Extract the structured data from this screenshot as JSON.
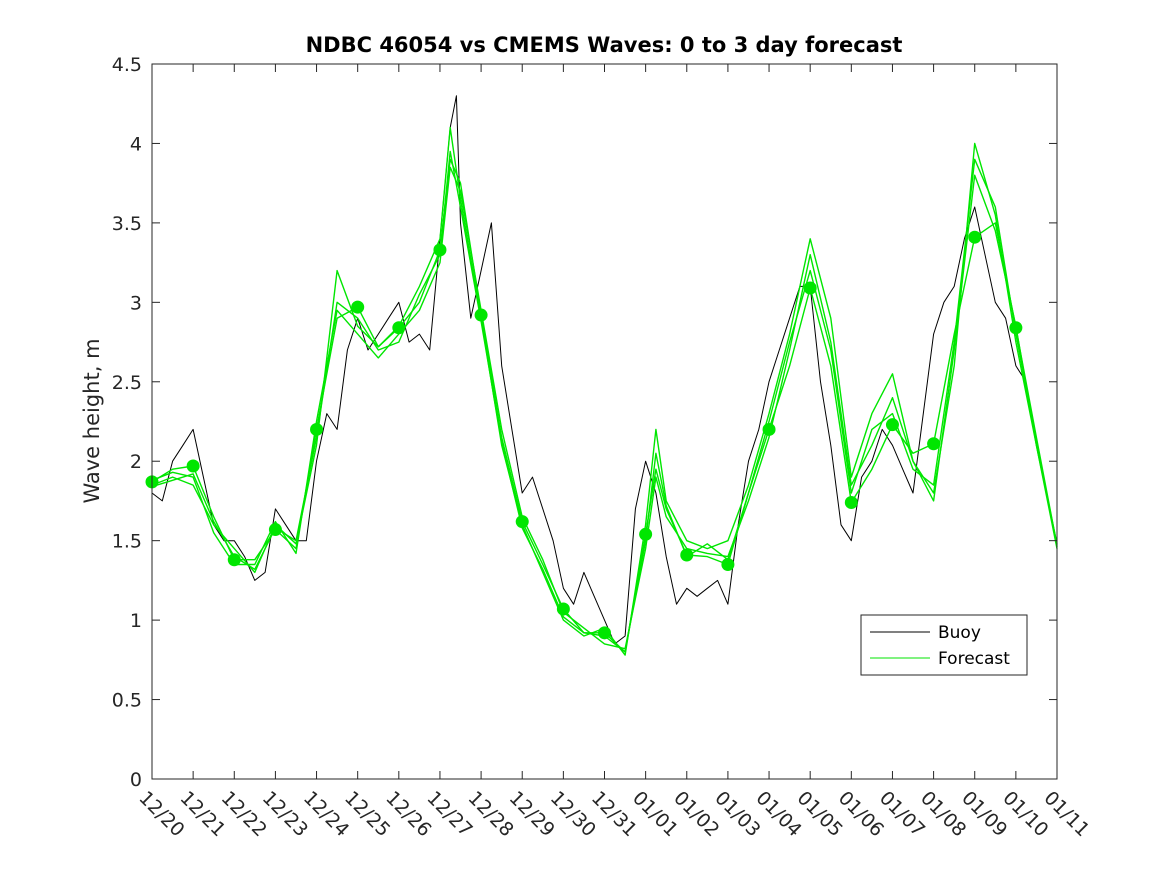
{
  "colors": {
    "buoy": "#000000",
    "forecast": "#00e600",
    "axes": "#262626",
    "background": "#ffffff"
  },
  "chart_data": {
    "type": "line",
    "title": "NDBC 46054 vs CMEMS Waves: 0 to 3 day forecast",
    "xlabel": "",
    "ylabel": "Wave height, m",
    "xlim": [
      0,
      22
    ],
    "ylim": [
      0,
      4.5
    ],
    "x_unit": "days, tick labels are dates",
    "x_tick_labels": [
      "12/20",
      "12/21",
      "12/22",
      "12/23",
      "12/24",
      "12/25",
      "12/26",
      "12/27",
      "12/28",
      "12/29",
      "12/30",
      "12/31",
      "01/01",
      "01/02",
      "01/03",
      "01/04",
      "01/05",
      "01/06",
      "01/07",
      "01/08",
      "01/09",
      "01/10",
      "01/11"
    ],
    "y_ticks": [
      "0",
      "0.5",
      "1",
      "1.5",
      "2",
      "2.5",
      "3",
      "3.5",
      "4",
      "4.5"
    ],
    "grid": false,
    "legend": {
      "placement": "bottom-right",
      "entries": [
        "Buoy",
        "Forecast"
      ]
    },
    "series": [
      {
        "name": "Buoy",
        "style": "line",
        "x": [
          0,
          0.25,
          0.5,
          0.75,
          1,
          1.25,
          1.5,
          1.75,
          2,
          2.25,
          2.5,
          2.75,
          3,
          3.25,
          3.5,
          3.75,
          4,
          4.25,
          4.5,
          4.75,
          5,
          5.25,
          5.5,
          5.75,
          6,
          6.25,
          6.5,
          6.75,
          7,
          7.25,
          7.4,
          7.5,
          7.75,
          8,
          8.25,
          8.5,
          8.75,
          9,
          9.25,
          9.5,
          9.75,
          10,
          10.25,
          10.5,
          10.75,
          11,
          11.25,
          11.5,
          11.75,
          12,
          12.25,
          12.5,
          12.75,
          13,
          13.25,
          13.5,
          13.75,
          14,
          14.25,
          14.5,
          14.75,
          15,
          15.25,
          15.5,
          15.75,
          16,
          16.25,
          16.5,
          16.75,
          17,
          17.25,
          17.5,
          17.75,
          18,
          18.25,
          18.5,
          18.75,
          19,
          19.25,
          19.5,
          19.75,
          20,
          20.25,
          20.5,
          20.75,
          21,
          21.25
        ],
        "y": [
          1.8,
          1.75,
          2.0,
          2.1,
          2.2,
          1.9,
          1.6,
          1.5,
          1.5,
          1.4,
          1.25,
          1.3,
          1.7,
          1.6,
          1.5,
          1.5,
          2.0,
          2.3,
          2.2,
          2.7,
          2.9,
          2.7,
          2.8,
          2.9,
          3.0,
          2.75,
          2.8,
          2.7,
          3.4,
          4.1,
          4.3,
          3.5,
          2.9,
          3.2,
          3.5,
          2.6,
          2.2,
          1.8,
          1.9,
          1.7,
          1.5,
          1.2,
          1.1,
          1.3,
          1.15,
          1.0,
          0.85,
          0.9,
          1.7,
          2.0,
          1.8,
          1.4,
          1.1,
          1.2,
          1.15,
          1.2,
          1.25,
          1.1,
          1.6,
          2.0,
          2.2,
          2.5,
          2.7,
          2.9,
          3.1,
          3.1,
          2.5,
          2.1,
          1.6,
          1.5,
          1.9,
          2.0,
          2.2,
          2.1,
          1.95,
          1.8,
          2.3,
          2.8,
          3.0,
          3.1,
          3.4,
          3.6,
          3.3,
          3.0,
          2.9,
          2.6,
          2.5
        ]
      },
      {
        "name": "Forecast",
        "style": "line",
        "x": [
          0,
          0.5,
          1,
          1.5,
          2,
          2.5,
          3,
          3.5,
          4,
          4.5,
          5,
          5.5,
          6,
          6.5,
          7,
          7.25,
          7.5,
          8,
          8.5,
          9,
          9.5,
          10,
          10.5,
          11,
          11.5,
          12,
          12.25,
          12.5,
          13,
          13.5,
          14,
          14.5,
          15,
          15.5,
          16,
          16.5,
          17,
          17.5,
          18,
          18.5,
          19,
          19.5,
          20,
          20.5,
          21,
          21.5,
          22
        ],
        "y": [
          1.87,
          1.95,
          1.97,
          1.65,
          1.38,
          1.38,
          1.57,
          1.45,
          2.2,
          2.9,
          2.97,
          2.72,
          2.84,
          3.0,
          3.33,
          3.9,
          3.75,
          2.92,
          2.15,
          1.62,
          1.35,
          1.07,
          0.92,
          0.92,
          0.8,
          1.54,
          1.95,
          1.7,
          1.41,
          1.4,
          1.35,
          1.8,
          2.2,
          2.6,
          3.09,
          2.6,
          1.74,
          1.95,
          2.23,
          2.05,
          2.11,
          2.8,
          3.41,
          3.5,
          2.84,
          2.15,
          1.47
        ]
      },
      {
        "name": "",
        "style": "line",
        "x": [
          0,
          0.5,
          1,
          1.5,
          2,
          2.5,
          3,
          3.5,
          4,
          4.5,
          5,
          5.5,
          6,
          6.5,
          7,
          7.25,
          7.5,
          8,
          8.5,
          9,
          9.5,
          10,
          10.5,
          11,
          11.5,
          12,
          12.25,
          12.5,
          13,
          13.5,
          14,
          14.5,
          15,
          15.5,
          16,
          16.5,
          17,
          17.5,
          18,
          18.5,
          19,
          19.5,
          20,
          20.5,
          21,
          21.5,
          22
        ],
        "y": [
          1.85,
          1.9,
          1.85,
          1.6,
          1.45,
          1.3,
          1.6,
          1.48,
          2.1,
          3.2,
          2.85,
          2.72,
          2.85,
          3.1,
          3.4,
          4.1,
          3.65,
          2.9,
          2.1,
          1.6,
          1.3,
          1.0,
          0.9,
          0.95,
          0.78,
          1.6,
          2.2,
          1.75,
          1.5,
          1.45,
          1.5,
          1.85,
          2.3,
          2.8,
          3.4,
          2.9,
          1.9,
          2.3,
          2.55,
          2.0,
          1.8,
          2.6,
          4.0,
          3.55,
          2.75,
          2.1,
          1.45
        ]
      },
      {
        "name": "",
        "style": "line",
        "x": [
          0,
          0.5,
          1,
          1.5,
          2,
          2.5,
          3,
          3.5,
          4,
          4.5,
          5,
          5.5,
          6,
          6.5,
          7,
          7.25,
          7.5,
          8,
          8.5,
          9,
          9.5,
          10,
          10.5,
          11,
          11.5,
          12,
          12.25,
          12.5,
          13,
          13.5,
          14,
          14.5,
          15,
          15.5,
          16,
          16.5,
          17,
          17.5,
          18,
          18.5,
          19,
          19.5,
          20,
          20.5,
          21,
          21.5,
          22
        ],
        "y": [
          1.88,
          1.93,
          1.9,
          1.55,
          1.35,
          1.35,
          1.62,
          1.42,
          2.25,
          2.95,
          2.8,
          2.65,
          2.8,
          2.95,
          3.25,
          3.85,
          3.7,
          2.95,
          2.2,
          1.65,
          1.38,
          1.05,
          0.95,
          0.85,
          0.82,
          1.45,
          1.9,
          1.65,
          1.45,
          1.42,
          1.4,
          1.75,
          2.15,
          2.7,
          3.3,
          2.75,
          1.85,
          2.1,
          2.4,
          2.0,
          1.75,
          2.7,
          3.8,
          3.45,
          2.85,
          2.1,
          1.48
        ]
      },
      {
        "name": "",
        "style": "line",
        "x": [
          0,
          0.5,
          1,
          1.5,
          2,
          2.5,
          3,
          3.5,
          4,
          4.5,
          5,
          5.5,
          6,
          6.5,
          7,
          7.25,
          7.5,
          8,
          8.5,
          9,
          9.5,
          10,
          10.5,
          11,
          11.5,
          12,
          12.25,
          12.5,
          13,
          13.5,
          14,
          14.5,
          15,
          15.5,
          16,
          16.5,
          17,
          17.5,
          18,
          18.5,
          19,
          19.5,
          20,
          20.5,
          21,
          21.5,
          22
        ],
        "y": [
          1.84,
          1.88,
          1.92,
          1.62,
          1.4,
          1.32,
          1.58,
          1.5,
          2.15,
          3.0,
          2.9,
          2.7,
          2.75,
          3.05,
          3.3,
          3.95,
          3.6,
          2.88,
          2.12,
          1.58,
          1.32,
          1.02,
          0.92,
          0.9,
          0.8,
          1.5,
          2.05,
          1.72,
          1.4,
          1.48,
          1.38,
          1.8,
          2.25,
          2.75,
          3.2,
          2.7,
          1.8,
          2.2,
          2.3,
          1.95,
          1.85,
          2.75,
          3.9,
          3.6,
          2.8,
          2.12,
          1.46
        ]
      },
      {
        "name": "",
        "style": "markers",
        "x": [
          0,
          1,
          2,
          3,
          4,
          5,
          6,
          7,
          8,
          9,
          10,
          11,
          12,
          13,
          14,
          15,
          16,
          17,
          18,
          19,
          20,
          21
        ],
        "y": [
          1.87,
          1.97,
          1.38,
          1.57,
          2.2,
          2.97,
          2.84,
          3.33,
          2.92,
          1.62,
          1.07,
          0.92,
          1.54,
          1.41,
          1.35,
          2.2,
          3.09,
          1.74,
          2.23,
          2.11,
          3.41,
          2.84
        ]
      }
    ]
  }
}
